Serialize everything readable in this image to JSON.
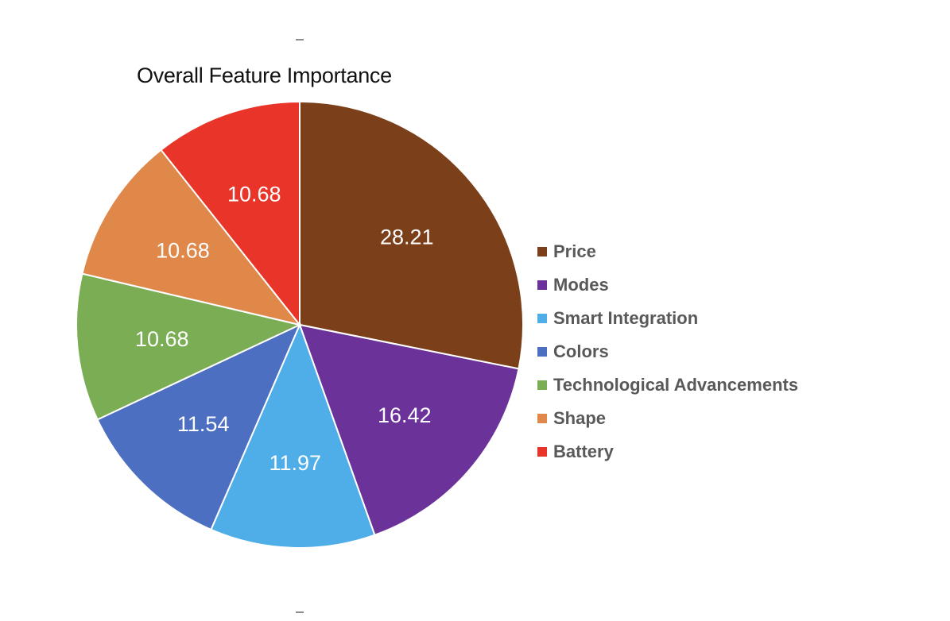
{
  "chart_data": {
    "type": "pie",
    "title": "Overall Feature Importance",
    "slices": [
      {
        "label": "Price",
        "value": 28.21,
        "value_label": "28.21",
        "color": "#7B3F1A"
      },
      {
        "label": "Modes",
        "value": 16.42,
        "value_label": "16.42",
        "color": "#6B3299"
      },
      {
        "label": "Smart Integration",
        "value": 11.97,
        "value_label": "11.97",
        "color": "#4FADE8"
      },
      {
        "label": "Colors",
        "value": 11.54,
        "value_label": "11.54",
        "color": "#4D6FC1"
      },
      {
        "label": "Technological Advancements",
        "value": 10.68,
        "value_label": "10.68",
        "color": "#7BAD55"
      },
      {
        "label": "Shape",
        "value": 10.68,
        "value_label": "10.68",
        "color": "#E0874A"
      },
      {
        "label": "Battery",
        "value": 10.68,
        "value_label": "10.68",
        "color": "#E83429"
      }
    ],
    "legend_position": "right"
  }
}
